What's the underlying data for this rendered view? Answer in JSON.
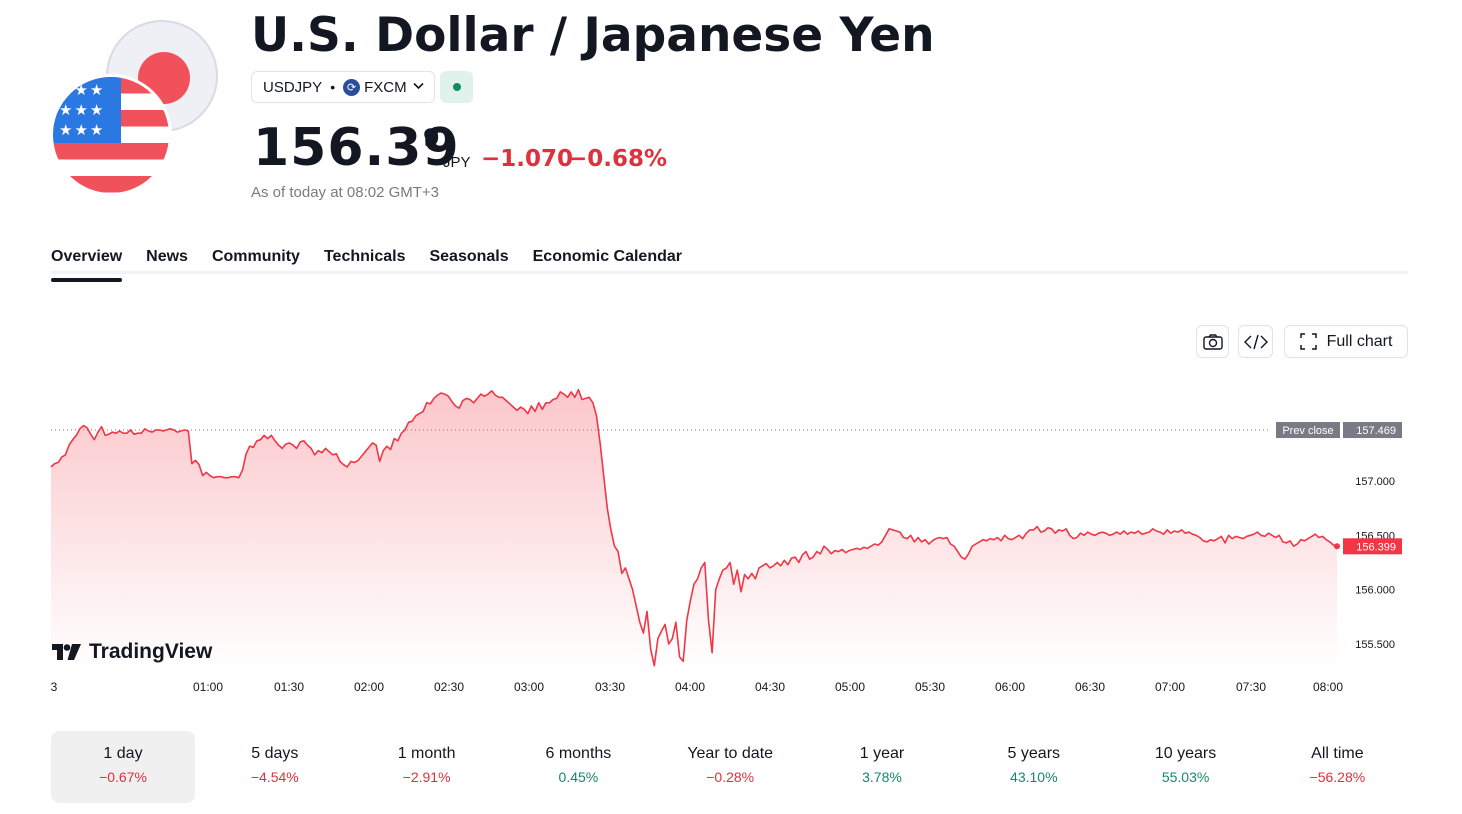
{
  "header": {
    "title": "U.S. Dollar / Japanese Yen",
    "symbol": "USDJPY",
    "separator": "•",
    "exchange": "FXCM",
    "price_main": "156.39",
    "price_sup": "9",
    "currency": "JPY",
    "change": "−1.070",
    "change_pct": "−0.68%",
    "as_of": "As of today at 08:02 GMT+3"
  },
  "tabs": [
    "Overview",
    "News",
    "Community",
    "Technicals",
    "Seasonals",
    "Economic Calendar"
  ],
  "toolbar": {
    "full_chart_label": "Full chart"
  },
  "logo": {
    "text": "TradingView"
  },
  "colors": {
    "line": "#f23645",
    "negative": "#e0303d",
    "positive": "#138a68",
    "label_bg": "#787b86"
  },
  "chart_data": {
    "type": "area",
    "x_ticks": [
      "3",
      "01:00",
      "01:30",
      "02:00",
      "02:30",
      "03:00",
      "03:30",
      "04:00",
      "04:30",
      "05:00",
      "05:30",
      "06:00",
      "06:30",
      "07:00",
      "07:30",
      "08:00"
    ],
    "y_ticks": [
      "157.000",
      "156.500",
      "156.000",
      "155.500"
    ],
    "ylim": [
      155.3,
      157.9
    ],
    "prev_close_label": "Prev close",
    "prev_close_value": 157.469,
    "prev_close_text": "157.469",
    "last_value": 156.399,
    "last_value_text": "156.399",
    "series": [
      {
        "values": [
          157.13,
          157.16,
          157.17,
          157.22,
          157.24,
          157.33,
          157.38,
          157.42,
          157.48,
          157.51,
          157.49,
          157.43,
          157.38,
          157.45,
          157.5,
          157.42,
          157.43,
          157.45,
          157.44,
          157.46,
          157.44,
          157.44,
          157.47,
          157.43,
          157.44,
          157.44,
          157.48,
          157.46,
          157.45,
          157.47,
          157.47,
          157.46,
          157.47,
          157.48,
          157.47,
          157.45,
          157.46,
          157.47,
          157.46,
          157.16,
          157.19,
          157.15,
          157.05,
          157.08,
          157.05,
          157.03,
          157.04,
          157.04,
          157.03,
          157.03,
          157.04,
          157.04,
          157.03,
          157.1,
          157.25,
          157.32,
          157.31,
          157.37,
          157.38,
          157.42,
          157.39,
          157.42,
          157.37,
          157.33,
          157.3,
          157.34,
          157.35,
          157.33,
          157.3,
          157.36,
          157.37,
          157.33,
          157.3,
          157.24,
          157.28,
          157.26,
          157.3,
          157.27,
          157.24,
          157.25,
          157.18,
          157.15,
          157.13,
          157.18,
          157.17,
          157.19,
          157.23,
          157.27,
          157.31,
          157.35,
          157.33,
          157.18,
          157.28,
          157.32,
          157.29,
          157.39,
          157.37,
          157.44,
          157.47,
          157.54,
          157.55,
          157.6,
          157.62,
          157.64,
          157.72,
          157.71,
          157.76,
          157.79,
          157.81,
          157.8,
          157.78,
          157.73,
          157.69,
          157.67,
          157.74,
          157.76,
          157.75,
          157.72,
          157.76,
          157.8,
          157.78,
          157.8,
          157.83,
          157.79,
          157.77,
          157.77,
          157.74,
          157.71,
          157.68,
          157.65,
          157.68,
          157.66,
          157.62,
          157.69,
          157.64,
          157.72,
          157.66,
          157.72,
          157.72,
          157.75,
          157.76,
          157.82,
          157.8,
          157.77,
          157.82,
          157.77,
          157.84,
          157.75,
          157.76,
          157.77,
          157.72,
          157.6,
          157.35,
          157.05,
          156.75,
          156.55,
          156.4,
          156.35,
          156.15,
          156.2,
          156.1,
          156.0,
          155.85,
          155.7,
          155.6,
          155.8,
          155.45,
          155.3,
          155.55,
          155.62,
          155.68,
          155.5,
          155.55,
          155.7,
          155.38,
          155.34,
          155.72,
          155.9,
          156.05,
          156.1,
          156.2,
          156.25,
          155.73,
          155.42,
          156.0,
          156.1,
          156.18,
          156.2,
          156.25,
          156.05,
          156.18,
          155.98,
          156.14,
          156.1,
          156.15,
          156.1,
          156.2,
          156.22,
          156.24,
          156.2,
          156.22,
          156.25,
          156.22,
          156.27,
          156.23,
          156.29,
          156.3,
          156.25,
          156.32,
          156.35,
          156.28,
          156.3,
          156.35,
          156.33,
          156.4,
          156.37,
          156.33,
          156.36,
          156.35,
          156.37,
          156.34,
          156.36,
          156.37,
          156.38,
          156.37,
          156.39,
          156.38,
          156.4,
          156.42,
          156.41,
          156.44,
          156.5,
          156.56,
          156.55,
          156.54,
          156.53,
          156.48,
          156.47,
          156.5,
          156.44,
          156.48,
          156.44,
          156.46,
          156.42,
          156.45,
          156.47,
          156.48,
          156.47,
          156.48,
          156.42,
          156.4,
          156.35,
          156.3,
          156.28,
          156.33,
          156.4,
          156.42,
          156.44,
          156.46,
          156.45,
          156.47,
          156.46,
          156.48,
          156.45,
          156.5,
          156.47,
          156.46,
          156.48,
          156.5,
          156.47,
          156.52,
          156.55,
          156.55,
          156.58,
          156.53,
          156.54,
          156.57,
          156.56,
          156.52,
          156.55,
          156.54,
          156.56,
          156.5,
          156.47,
          156.48,
          156.52,
          156.5,
          156.53,
          156.51,
          156.5,
          156.52,
          156.53,
          156.52,
          156.5,
          156.51,
          156.53,
          156.51,
          156.54,
          156.51,
          156.53,
          156.52,
          156.54,
          156.51,
          156.52,
          156.53,
          156.56,
          156.54,
          156.53,
          156.51,
          156.55,
          156.52,
          156.54,
          156.53,
          156.55,
          156.52,
          156.53,
          156.51,
          156.5,
          156.48,
          156.45,
          156.44,
          156.46,
          156.45,
          156.47,
          156.49,
          156.43,
          156.5,
          156.47,
          156.49,
          156.48,
          156.47,
          156.49,
          156.5,
          156.51,
          156.53,
          156.5,
          156.49,
          156.52,
          156.5,
          156.48,
          156.5,
          156.44,
          156.43,
          156.45,
          156.4,
          156.42,
          156.46,
          156.45,
          156.47,
          156.49,
          156.51,
          156.48,
          156.49,
          156.46,
          156.44,
          156.41,
          156.4
        ]
      }
    ]
  },
  "periods": [
    {
      "label": "1 day",
      "value": "−0.67%",
      "dir": "neg"
    },
    {
      "label": "5 days",
      "value": "−4.54%",
      "dir": "neg"
    },
    {
      "label": "1 month",
      "value": "−2.91%",
      "dir": "neg"
    },
    {
      "label": "6 months",
      "value": "0.45%",
      "dir": "pos"
    },
    {
      "label": "Year to date",
      "value": "−0.28%",
      "dir": "neg"
    },
    {
      "label": "1 year",
      "value": "3.78%",
      "dir": "pos"
    },
    {
      "label": "5 years",
      "value": "43.10%",
      "dir": "pos"
    },
    {
      "label": "10 years",
      "value": "55.03%",
      "dir": "pos"
    },
    {
      "label": "All time",
      "value": "−56.28%",
      "dir": "neg"
    }
  ]
}
